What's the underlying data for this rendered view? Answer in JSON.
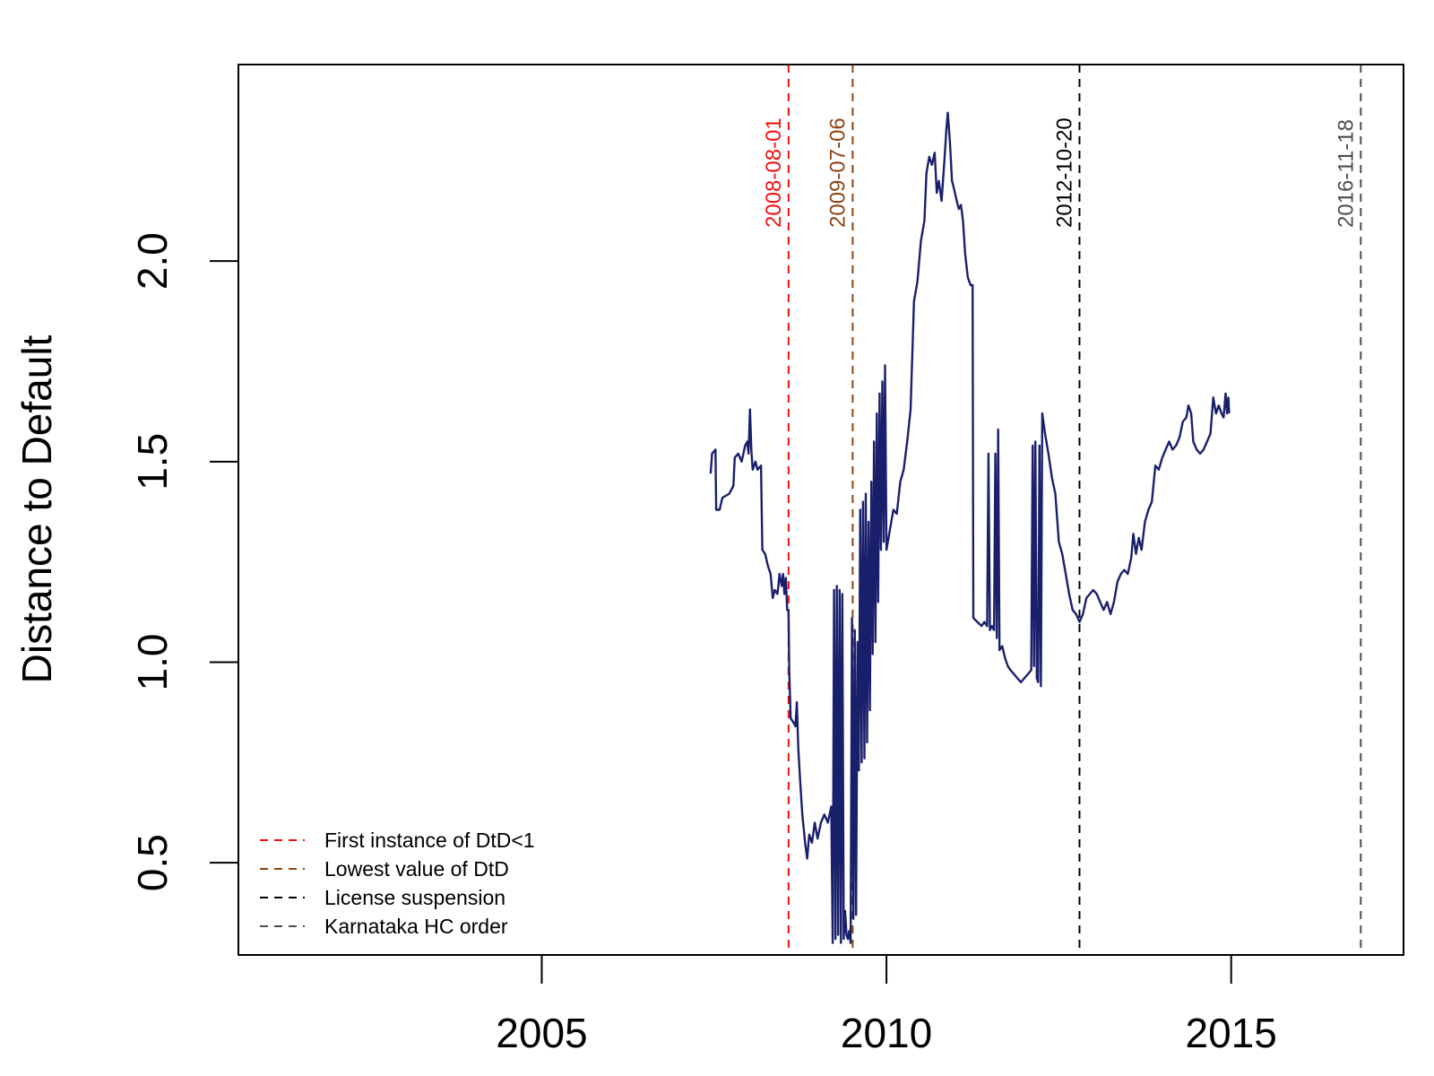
{
  "chart_data": {
    "type": "line",
    "title": "",
    "xlabel": "",
    "ylabel": "Distance to Default",
    "xlim": [
      2000.6,
      2017.5
    ],
    "ylim": [
      0.27,
      2.49
    ],
    "xticks": [
      {
        "value": 2005,
        "label": "2005"
      },
      {
        "value": 2010,
        "label": "2010"
      },
      {
        "value": 2015,
        "label": "2015"
      }
    ],
    "yticks": [
      {
        "value": 0.5,
        "label": "0.5"
      },
      {
        "value": 1.0,
        "label": "1.0"
      },
      {
        "value": 1.5,
        "label": "1.5"
      },
      {
        "value": 2.0,
        "label": "2.0"
      }
    ],
    "grid": false,
    "legend_position": "bottom-left",
    "series": [
      {
        "name": "Distance to Default",
        "color": "#1a1f6b",
        "points": [
          [
            2007.45,
            1.47
          ],
          [
            2007.47,
            1.52
          ],
          [
            2007.52,
            1.53
          ],
          [
            2007.53,
            1.38
          ],
          [
            2007.58,
            1.38
          ],
          [
            2007.62,
            1.41
          ],
          [
            2007.72,
            1.42
          ],
          [
            2007.78,
            1.44
          ],
          [
            2007.8,
            1.51
          ],
          [
            2007.85,
            1.52
          ],
          [
            2007.9,
            1.5
          ],
          [
            2007.95,
            1.54
          ],
          [
            2007.98,
            1.55
          ],
          [
            2008.0,
            1.52
          ],
          [
            2008.02,
            1.63
          ],
          [
            2008.04,
            1.53
          ],
          [
            2008.06,
            1.48
          ],
          [
            2008.1,
            1.5
          ],
          [
            2008.13,
            1.48
          ],
          [
            2008.18,
            1.49
          ],
          [
            2008.2,
            1.28
          ],
          [
            2008.24,
            1.27
          ],
          [
            2008.28,
            1.24
          ],
          [
            2008.32,
            1.22
          ],
          [
            2008.35,
            1.16
          ],
          [
            2008.38,
            1.18
          ],
          [
            2008.42,
            1.17
          ],
          [
            2008.45,
            1.22
          ],
          [
            2008.48,
            1.19
          ],
          [
            2008.5,
            1.22
          ],
          [
            2008.52,
            1.17
          ],
          [
            2008.54,
            1.21
          ],
          [
            2008.56,
            1.13
          ],
          [
            2008.58,
            1.13
          ],
          [
            2008.59,
            0.98
          ],
          [
            2008.61,
            0.86
          ],
          [
            2008.65,
            0.85
          ],
          [
            2008.68,
            0.84
          ],
          [
            2008.7,
            0.9
          ],
          [
            2008.72,
            0.79
          ],
          [
            2008.75,
            0.7
          ],
          [
            2008.78,
            0.62
          ],
          [
            2008.82,
            0.55
          ],
          [
            2008.85,
            0.51
          ],
          [
            2008.88,
            0.57
          ],
          [
            2008.92,
            0.55
          ],
          [
            2008.96,
            0.6
          ],
          [
            2009.0,
            0.56
          ],
          [
            2009.05,
            0.6
          ],
          [
            2009.1,
            0.62
          ],
          [
            2009.15,
            0.6
          ],
          [
            2009.2,
            0.64
          ],
          [
            2009.22,
            0.3
          ],
          [
            2009.24,
            1.18
          ],
          [
            2009.26,
            0.31
          ],
          [
            2009.28,
            1.19
          ],
          [
            2009.3,
            0.32
          ],
          [
            2009.32,
            1.18
          ],
          [
            2009.34,
            0.3
          ],
          [
            2009.36,
            1.17
          ],
          [
            2009.38,
            0.31
          ],
          [
            2009.4,
            0.38
          ],
          [
            2009.42,
            0.32
          ],
          [
            2009.44,
            0.31
          ],
          [
            2009.46,
            0.33
          ],
          [
            2009.48,
            0.3
          ],
          [
            2009.5,
            1.11
          ],
          [
            2009.52,
            0.36
          ],
          [
            2009.54,
            1.08
          ],
          [
            2009.56,
            0.37
          ],
          [
            2009.58,
            1.05
          ],
          [
            2009.6,
            0.73
          ],
          [
            2009.62,
            1.38
          ],
          [
            2009.64,
            0.75
          ],
          [
            2009.66,
            1.4
          ],
          [
            2009.68,
            0.76
          ],
          [
            2009.7,
            1.42
          ],
          [
            2009.72,
            0.8
          ],
          [
            2009.74,
            1.35
          ],
          [
            2009.76,
            0.88
          ],
          [
            2009.78,
            1.45
          ],
          [
            2009.8,
            1.02
          ],
          [
            2009.82,
            1.55
          ],
          [
            2009.84,
            1.05
          ],
          [
            2009.86,
            1.62
          ],
          [
            2009.88,
            1.15
          ],
          [
            2009.9,
            1.67
          ],
          [
            2009.92,
            1.28
          ],
          [
            2009.94,
            1.7
          ],
          [
            2009.96,
            1.3
          ],
          [
            2009.98,
            1.74
          ],
          [
            2010.0,
            1.28
          ],
          [
            2010.05,
            1.33
          ],
          [
            2010.1,
            1.38
          ],
          [
            2010.15,
            1.37
          ],
          [
            2010.2,
            1.45
          ],
          [
            2010.25,
            1.48
          ],
          [
            2010.3,
            1.55
          ],
          [
            2010.35,
            1.63
          ],
          [
            2010.4,
            1.9
          ],
          [
            2010.45,
            1.95
          ],
          [
            2010.5,
            2.05
          ],
          [
            2010.55,
            2.1
          ],
          [
            2010.58,
            2.22
          ],
          [
            2010.62,
            2.26
          ],
          [
            2010.66,
            2.24
          ],
          [
            2010.7,
            2.27
          ],
          [
            2010.73,
            2.17
          ],
          [
            2010.76,
            2.2
          ],
          [
            2010.8,
            2.15
          ],
          [
            2010.84,
            2.25
          ],
          [
            2010.87,
            2.33
          ],
          [
            2010.89,
            2.37
          ],
          [
            2010.92,
            2.3
          ],
          [
            2010.95,
            2.2
          ],
          [
            2010.98,
            2.18
          ],
          [
            2011.02,
            2.15
          ],
          [
            2011.05,
            2.13
          ],
          [
            2011.08,
            2.14
          ],
          [
            2011.11,
            2.1
          ],
          [
            2011.14,
            2.02
          ],
          [
            2011.18,
            1.96
          ],
          [
            2011.22,
            1.94
          ],
          [
            2011.25,
            1.94
          ],
          [
            2011.26,
            1.11
          ],
          [
            2011.32,
            1.1
          ],
          [
            2011.38,
            1.09
          ],
          [
            2011.42,
            1.1
          ],
          [
            2011.46,
            1.09
          ],
          [
            2011.48,
            1.52
          ],
          [
            2011.5,
            1.08
          ],
          [
            2011.53,
            1.09
          ],
          [
            2011.56,
            1.08
          ],
          [
            2011.58,
            1.52
          ],
          [
            2011.6,
            1.06
          ],
          [
            2011.62,
            1.58
          ],
          [
            2011.64,
            1.03
          ],
          [
            2011.68,
            1.04
          ],
          [
            2011.72,
            1.01
          ],
          [
            2011.76,
            0.99
          ],
          [
            2011.8,
            0.98
          ],
          [
            2011.85,
            0.97
          ],
          [
            2011.9,
            0.96
          ],
          [
            2011.95,
            0.95
          ],
          [
            2012.0,
            0.96
          ],
          [
            2012.05,
            0.97
          ],
          [
            2012.1,
            0.98
          ],
          [
            2012.12,
            1.54
          ],
          [
            2012.14,
            0.99
          ],
          [
            2012.16,
            1.55
          ],
          [
            2012.18,
            0.96
          ],
          [
            2012.2,
            0.95
          ],
          [
            2012.22,
            1.54
          ],
          [
            2012.24,
            0.94
          ],
          [
            2012.26,
            1.62
          ],
          [
            2012.3,
            1.57
          ],
          [
            2012.35,
            1.52
          ],
          [
            2012.4,
            1.46
          ],
          [
            2012.45,
            1.42
          ],
          [
            2012.5,
            1.3
          ],
          [
            2012.55,
            1.27
          ],
          [
            2012.6,
            1.22
          ],
          [
            2012.65,
            1.17
          ],
          [
            2012.7,
            1.13
          ],
          [
            2012.75,
            1.12
          ],
          [
            2012.8,
            1.1
          ],
          [
            2012.85,
            1.12
          ],
          [
            2012.9,
            1.16
          ],
          [
            2012.95,
            1.17
          ],
          [
            2013.0,
            1.18
          ],
          [
            2013.05,
            1.17
          ],
          [
            2013.1,
            1.15
          ],
          [
            2013.15,
            1.13
          ],
          [
            2013.2,
            1.15
          ],
          [
            2013.25,
            1.12
          ],
          [
            2013.3,
            1.15
          ],
          [
            2013.35,
            1.2
          ],
          [
            2013.4,
            1.22
          ],
          [
            2013.45,
            1.23
          ],
          [
            2013.5,
            1.22
          ],
          [
            2013.55,
            1.26
          ],
          [
            2013.58,
            1.32
          ],
          [
            2013.62,
            1.27
          ],
          [
            2013.66,
            1.31
          ],
          [
            2013.7,
            1.28
          ],
          [
            2013.75,
            1.35
          ],
          [
            2013.8,
            1.38
          ],
          [
            2013.85,
            1.4
          ],
          [
            2013.9,
            1.49
          ],
          [
            2013.95,
            1.48
          ],
          [
            2014.0,
            1.51
          ],
          [
            2014.05,
            1.53
          ],
          [
            2014.1,
            1.55
          ],
          [
            2014.15,
            1.53
          ],
          [
            2014.2,
            1.54
          ],
          [
            2014.25,
            1.56
          ],
          [
            2014.3,
            1.6
          ],
          [
            2014.35,
            1.61
          ],
          [
            2014.38,
            1.64
          ],
          [
            2014.42,
            1.62
          ],
          [
            2014.45,
            1.55
          ],
          [
            2014.5,
            1.53
          ],
          [
            2014.55,
            1.52
          ],
          [
            2014.6,
            1.53
          ],
          [
            2014.65,
            1.55
          ],
          [
            2014.7,
            1.57
          ],
          [
            2014.74,
            1.66
          ],
          [
            2014.78,
            1.62
          ],
          [
            2014.82,
            1.64
          ],
          [
            2014.86,
            1.62
          ],
          [
            2014.89,
            1.61
          ],
          [
            2014.92,
            1.67
          ],
          [
            2014.94,
            1.62
          ],
          [
            2014.96,
            1.66
          ],
          [
            2014.97,
            1.62
          ]
        ]
      }
    ],
    "vlines": [
      {
        "x": 2008.58,
        "label": "2008-08-01",
        "color": "#ee1111",
        "legend": "First instance of DtD<1"
      },
      {
        "x": 2009.51,
        "label": "2009-07-06",
        "color": "#8b4513",
        "legend": "Lowest value of DtD"
      },
      {
        "x": 2012.8,
        "label": "2012-10-20",
        "color": "#000000",
        "legend": "License suspension"
      },
      {
        "x": 2016.88,
        "label": "2016-11-18",
        "color": "#4d4d4d",
        "legend": "Karnataka HC order"
      }
    ]
  }
}
